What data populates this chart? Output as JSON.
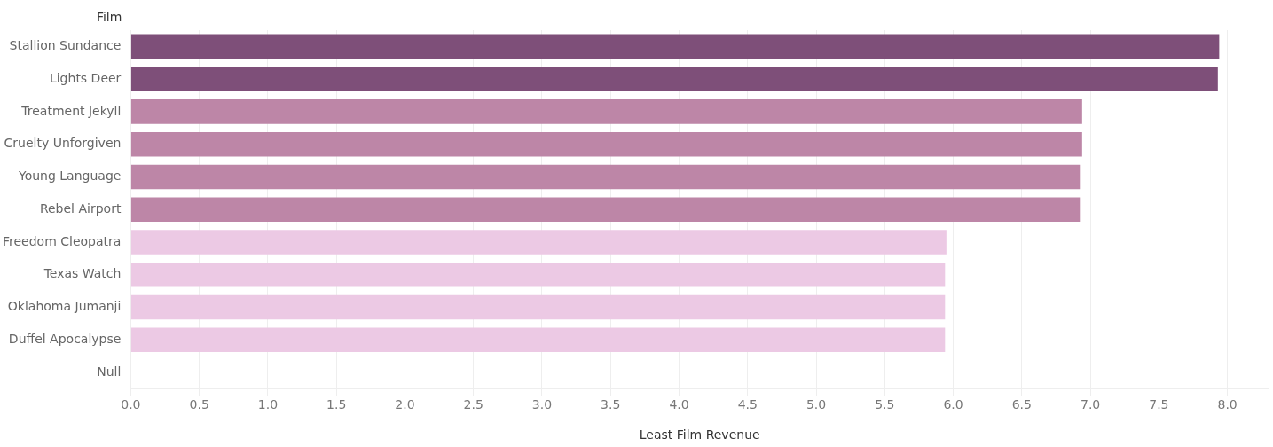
{
  "chart_data": {
    "type": "bar",
    "orientation": "horizontal",
    "ylabel": "Film",
    "xlabel": "Least Film Revenue",
    "categories": [
      "Stallion Sundance",
      "Lights Deer",
      "Treatment Jekyll",
      "Cruelty Unforgiven",
      "Young Language",
      "Rebel Airport",
      "Freedom Cleopatra",
      "Texas Watch",
      "Oklahoma Jumanji",
      "Duffel Apocalypse",
      "Null"
    ],
    "values": [
      7.94,
      7.93,
      6.94,
      6.94,
      6.93,
      6.93,
      5.95,
      5.94,
      5.94,
      5.94,
      null
    ],
    "colors": [
      "#7e4f79",
      "#7e4f79",
      "#bd86a7",
      "#bd86a7",
      "#bd86a7",
      "#bd86a7",
      "#ecc9e4",
      "#ecc9e4",
      "#ecc9e4",
      "#ecc9e4",
      "#ecc9e4"
    ],
    "xlim": [
      0,
      8.3
    ],
    "xticks": [
      {
        "value": 0,
        "label": "0.0"
      },
      0.5,
      {
        "value": 1,
        "label": "1.0"
      },
      1.5,
      {
        "value": 2,
        "label": "2.0"
      },
      2.5,
      {
        "value": 3,
        "label": "3.0"
      },
      3.5,
      {
        "value": 4,
        "label": "4.0"
      },
      4.5,
      {
        "value": 5,
        "label": "5.0"
      },
      5.5,
      {
        "value": 6,
        "label": "6.0"
      },
      6.5,
      {
        "value": 7,
        "label": "7.0"
      },
      7.5,
      {
        "value": 8,
        "label": "8.0"
      }
    ],
    "grid": "x",
    "legend": false
  }
}
